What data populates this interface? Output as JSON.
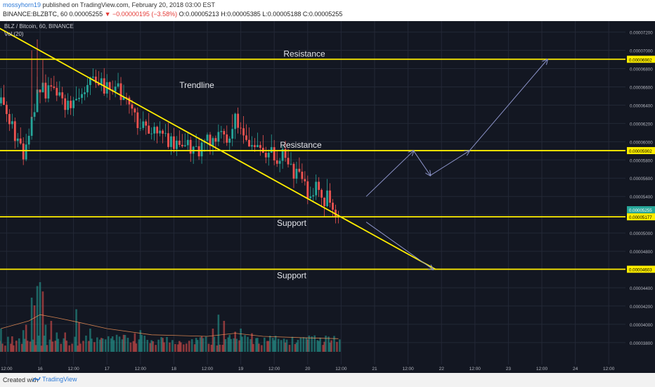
{
  "header": {
    "user": "mossyhorn19",
    "published": "published on TradingView.com, February 20, 2018 03:00 EST",
    "symbol": "BINANCE:BLZBTC, 60",
    "last": "0.00005255",
    "change": "−0.00000195 (−3.58%)",
    "open": "O:0.00005213",
    "high": "H:0.00005385",
    "low": "L:0.00005188",
    "close": "C:0.00005255"
  },
  "legend": {
    "title": "BLZ / Bitcoin, 60, BINANCE",
    "vol": "Vol (20)"
  },
  "footer": {
    "created": "Created with",
    "brand": "TradingView",
    "logo_icon": "tradingview-logo-icon"
  },
  "colors": {
    "background": "#131722",
    "grid": "#232836",
    "level": "#ffee00",
    "up": "#26a69a",
    "down": "#ef5350",
    "arrow": "#8c93c9",
    "badge": "#26a69a"
  },
  "chart_data": {
    "type": "candlestick",
    "title": "BLZ / Bitcoin, 60, BINANCE",
    "y_unit": "BTC",
    "ylim": [
      3.56e-05,
      7.32e-05
    ],
    "yticks": [
      "0.00007200",
      "0.00007000",
      "0.00006800",
      "0.00006600",
      "0.00006400",
      "0.00006200",
      "0.00006000",
      "0.00005800",
      "0.00005600",
      "0.00005400",
      "0.00005200",
      "0.00005000",
      "0.00004800",
      "0.00004600",
      "0.00004400",
      "0.00004200",
      "0.00004000",
      "0.00003800"
    ],
    "xticks": [
      "12:00",
      "16",
      "12:00",
      "17",
      "12:00",
      "18",
      "12:00",
      "19",
      "12:00",
      "20",
      "12:00",
      "21",
      "12:00",
      "22",
      "12:00",
      "23",
      "12:00",
      "24",
      "12:00"
    ],
    "xtick_hours": [
      -12,
      0,
      12,
      24,
      36,
      48,
      60,
      72,
      84,
      96,
      108,
      120,
      132,
      144,
      156,
      168,
      180,
      192,
      204
    ],
    "x_origin": "Feb 16 00:00",
    "current_price": "0.00005255",
    "current_price_hour": 107,
    "price_path": [
      [
        -15,
        6.42e-05
      ],
      [
        -13,
        6.35e-05
      ],
      [
        -11,
        6.25e-05
      ],
      [
        -9,
        6.1e-05
      ],
      [
        -7,
        5.98e-05
      ],
      [
        -6,
        5.9e-05
      ],
      [
        -4,
        6.1e-05
      ],
      [
        -2,
        6.4e-05
      ],
      [
        0,
        6.65e-05
      ],
      [
        2,
        6.55e-05
      ],
      [
        4,
        6.64e-05
      ],
      [
        6,
        6.6e-05
      ],
      [
        8,
        6.48e-05
      ],
      [
        10,
        6.4e-05
      ],
      [
        12,
        6.45e-05
      ],
      [
        14,
        6.38e-05
      ],
      [
        16,
        6.5e-05
      ],
      [
        18,
        6.68e-05
      ],
      [
        20,
        6.63e-05
      ],
      [
        22,
        6.66e-05
      ],
      [
        24,
        6.6e-05
      ],
      [
        26,
        6.65e-05
      ],
      [
        28,
        6.56e-05
      ],
      [
        30,
        6.45e-05
      ],
      [
        32,
        6.33e-05
      ],
      [
        34,
        6.25e-05
      ],
      [
        36,
        6.18e-05
      ],
      [
        38,
        6.1e-05
      ],
      [
        40,
        6.15e-05
      ],
      [
        42,
        6.08e-05
      ],
      [
        44,
        6.05e-05
      ],
      [
        46,
        6e-05
      ],
      [
        48,
        5.94e-05
      ],
      [
        50,
        5.96e-05
      ],
      [
        52,
        6e-05
      ],
      [
        54,
        5.97e-05
      ],
      [
        56,
        5.93e-05
      ],
      [
        58,
        5.95e-05
      ],
      [
        60,
        5.98e-05
      ],
      [
        62,
        5.96e-05
      ],
      [
        64,
        6e-05
      ],
      [
        66,
        6.03e-05
      ],
      [
        68,
        6.12e-05
      ],
      [
        70,
        6.2e-05
      ],
      [
        72,
        6.05e-05
      ],
      [
        74,
        5.95e-05
      ],
      [
        76,
        6.01e-05
      ],
      [
        78,
        5.98e-05
      ],
      [
        80,
        5.92e-05
      ],
      [
        82,
        5.9e-05
      ],
      [
        84,
        5.88e-05
      ],
      [
        86,
        5.84e-05
      ],
      [
        88,
        5.78e-05
      ],
      [
        90,
        5.7e-05
      ],
      [
        92,
        5.62e-05
      ],
      [
        94,
        5.55e-05
      ],
      [
        96,
        5.48e-05
      ],
      [
        98,
        5.45e-05
      ],
      [
        100,
        5.5e-05
      ],
      [
        102,
        5.4e-05
      ],
      [
        104,
        5.32e-05
      ],
      [
        106,
        5.22e-05
      ],
      [
        107,
        5.255e-05
      ]
    ],
    "levels": [
      {
        "label": "Resistance",
        "price": 6.902e-05,
        "badge": "0.00006902"
      },
      {
        "label": "Resistance",
        "price": 5.902e-05,
        "badge": "0.00005902"
      },
      {
        "label": "Support",
        "price": 5.177e-05,
        "badge": "0.00005177"
      },
      {
        "label": "Support",
        "price": 4.603e-05,
        "badge": "0.00004603"
      }
    ],
    "trendline": {
      "label": "Trendline",
      "from": [
        -18,
        7.3e-05
      ],
      "to": [
        142,
        4.6e-05
      ]
    },
    "projections": [
      [
        [
          117,
          5.4e-05
        ],
        [
          134,
          5.9e-05
        ],
        [
          140,
          5.63e-05
        ],
        [
          154,
          5.9e-05
        ]
      ],
      [
        [
          154,
          5.9e-05
        ],
        [
          182,
          6.9e-05
        ]
      ],
      [
        [
          117,
          5.12e-05
        ],
        [
          141,
          4.6e-05
        ]
      ]
    ],
    "volume": {
      "label": "Vol (20)",
      "vmax": 100,
      "bars_up_approx": [
        [
          -14,
          30
        ],
        [
          -6,
          28
        ],
        [
          -3,
          70
        ],
        [
          -1,
          85
        ],
        [
          0,
          90
        ],
        [
          2,
          35
        ],
        [
          6,
          25
        ],
        [
          13,
          55
        ],
        [
          18,
          30
        ],
        [
          26,
          20
        ],
        [
          36,
          28
        ],
        [
          40,
          15
        ],
        [
          56,
          18
        ],
        [
          64,
          48
        ],
        [
          68,
          22
        ],
        [
          72,
          30
        ],
        [
          78,
          18
        ],
        [
          84,
          15
        ],
        [
          92,
          12
        ],
        [
          100,
          14
        ],
        [
          104,
          12
        ]
      ],
      "bars_down_approx": [
        [
          -10,
          20
        ],
        [
          -5,
          35
        ],
        [
          -2,
          60
        ],
        [
          1,
          78
        ],
        [
          4,
          40
        ],
        [
          9,
          25
        ],
        [
          14,
          38
        ],
        [
          22,
          18
        ],
        [
          30,
          22
        ],
        [
          34,
          24
        ],
        [
          44,
          18
        ],
        [
          50,
          14
        ],
        [
          58,
          20
        ],
        [
          62,
          30
        ],
        [
          66,
          40
        ],
        [
          70,
          26
        ],
        [
          76,
          24
        ],
        [
          82,
          14
        ],
        [
          88,
          12
        ],
        [
          96,
          16
        ],
        [
          102,
          13
        ]
      ],
      "ma_approx": [
        [
          -14,
          30
        ],
        [
          -4,
          40
        ],
        [
          0,
          48
        ],
        [
          6,
          44
        ],
        [
          14,
          38
        ],
        [
          24,
          30
        ],
        [
          40,
          22
        ],
        [
          60,
          20
        ],
        [
          70,
          24
        ],
        [
          80,
          20
        ],
        [
          96,
          18
        ],
        [
          107,
          17
        ]
      ]
    }
  }
}
